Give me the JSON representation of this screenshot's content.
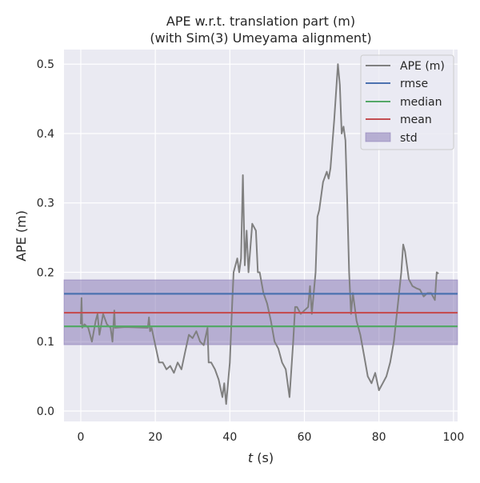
{
  "chart_data": {
    "type": "line",
    "title": "APE w.r.t. translation part (m)",
    "subtitle": "(with Sim(3) Umeyama alignment)",
    "xlabel_var": "t",
    "xlabel_unit": " (s)",
    "ylabel": "APE (m)",
    "xlim": [
      -4.5,
      101.1
    ],
    "ylim": [
      -0.015,
      0.521
    ],
    "xticks": [
      0,
      20,
      40,
      60,
      80,
      100
    ],
    "xtick_labels": [
      "0",
      "20",
      "40",
      "60",
      "80",
      "100"
    ],
    "yticks": [
      0.0,
      0.1,
      0.2,
      0.3,
      0.4,
      0.5
    ],
    "ytick_labels": [
      "0.0",
      "0.1",
      "0.2",
      "0.3",
      "0.4",
      "0.5"
    ],
    "grid": true,
    "legend_position": "top-right",
    "legend": [
      "APE (m)",
      "rmse",
      "median",
      "mean",
      "std"
    ],
    "colors": {
      "ape": "#808080",
      "rmse": "#4c72b0",
      "median": "#55a868",
      "mean": "#c44e52",
      "std": "#8172b2",
      "background": "#eaeaf2"
    },
    "stats": {
      "rmse": 0.169,
      "median": 0.122,
      "mean": 0.1417,
      "std_low": 0.0956,
      "std_high": 0.189
    },
    "series": [
      {
        "name": "APE (m)",
        "points": [
          [
            0,
            0.125
          ],
          [
            0.2,
            0.163
          ],
          [
            0.4,
            0.12
          ],
          [
            1,
            0.125
          ],
          [
            2,
            0.12
          ],
          [
            3,
            0.1
          ],
          [
            4,
            0.13
          ],
          [
            4.5,
            0.14
          ],
          [
            5,
            0.11
          ],
          [
            6,
            0.14
          ],
          [
            7,
            0.125
          ],
          [
            8,
            0.12
          ],
          [
            8.5,
            0.1
          ],
          [
            9,
            0.145
          ],
          [
            9.2,
            0.12
          ],
          [
            12,
            0.121
          ],
          [
            18,
            0.12
          ],
          [
            18.3,
            0.135
          ],
          [
            18.6,
            0.115
          ],
          [
            19,
            0.12
          ],
          [
            20,
            0.095
          ],
          [
            21,
            0.07
          ],
          [
            22,
            0.07
          ],
          [
            23,
            0.06
          ],
          [
            24,
            0.065
          ],
          [
            25,
            0.055
          ],
          [
            26,
            0.07
          ],
          [
            27,
            0.06
          ],
          [
            28,
            0.085
          ],
          [
            29,
            0.11
          ],
          [
            30,
            0.105
          ],
          [
            31,
            0.115
          ],
          [
            32,
            0.1
          ],
          [
            33,
            0.095
          ],
          [
            34,
            0.12
          ],
          [
            34.3,
            0.07
          ],
          [
            35,
            0.07
          ],
          [
            36,
            0.06
          ],
          [
            37,
            0.045
          ],
          [
            38,
            0.02
          ],
          [
            38.5,
            0.04
          ],
          [
            39,
            0.01
          ],
          [
            40,
            0.07
          ],
          [
            40.5,
            0.14
          ],
          [
            41,
            0.2
          ],
          [
            42,
            0.22
          ],
          [
            42.5,
            0.2
          ],
          [
            43,
            0.22
          ],
          [
            43.5,
            0.34
          ],
          [
            44,
            0.21
          ],
          [
            44.5,
            0.26
          ],
          [
            45,
            0.2
          ],
          [
            46,
            0.27
          ],
          [
            47,
            0.26
          ],
          [
            47.5,
            0.2
          ],
          [
            48,
            0.2
          ],
          [
            49,
            0.17
          ],
          [
            50,
            0.155
          ],
          [
            51,
            0.13
          ],
          [
            52,
            0.1
          ],
          [
            53,
            0.09
          ],
          [
            54,
            0.07
          ],
          [
            55,
            0.06
          ],
          [
            56,
            0.02
          ],
          [
            56.5,
            0.06
          ],
          [
            57,
            0.1
          ],
          [
            57.5,
            0.15
          ],
          [
            58,
            0.15
          ],
          [
            59,
            0.14
          ],
          [
            60,
            0.145
          ],
          [
            61,
            0.15
          ],
          [
            61.5,
            0.18
          ],
          [
            62,
            0.14
          ],
          [
            63,
            0.2
          ],
          [
            63.5,
            0.28
          ],
          [
            64,
            0.29
          ],
          [
            65,
            0.33
          ],
          [
            66,
            0.345
          ],
          [
            66.5,
            0.335
          ],
          [
            67,
            0.35
          ],
          [
            68,
            0.42
          ],
          [
            69,
            0.5
          ],
          [
            69.5,
            0.47
          ],
          [
            70,
            0.4
          ],
          [
            70.5,
            0.41
          ],
          [
            71,
            0.39
          ],
          [
            71.5,
            0.3
          ],
          [
            72,
            0.2
          ],
          [
            72.5,
            0.14
          ],
          [
            73,
            0.17
          ],
          [
            74,
            0.13
          ],
          [
            75,
            0.11
          ],
          [
            76,
            0.08
          ],
          [
            77,
            0.05
          ],
          [
            78,
            0.04
          ],
          [
            79,
            0.055
          ],
          [
            80,
            0.03
          ],
          [
            81,
            0.04
          ],
          [
            82,
            0.05
          ],
          [
            83,
            0.07
          ],
          [
            84,
            0.1
          ],
          [
            85,
            0.15
          ],
          [
            86,
            0.2
          ],
          [
            86.5,
            0.24
          ],
          [
            87,
            0.23
          ],
          [
            88,
            0.19
          ],
          [
            89,
            0.18
          ],
          [
            90,
            0.177
          ],
          [
            91,
            0.175
          ],
          [
            92,
            0.165
          ],
          [
            93,
            0.17
          ],
          [
            94,
            0.17
          ],
          [
            95,
            0.16
          ],
          [
            95.5,
            0.2
          ],
          [
            96,
            0.198
          ]
        ]
      }
    ]
  }
}
